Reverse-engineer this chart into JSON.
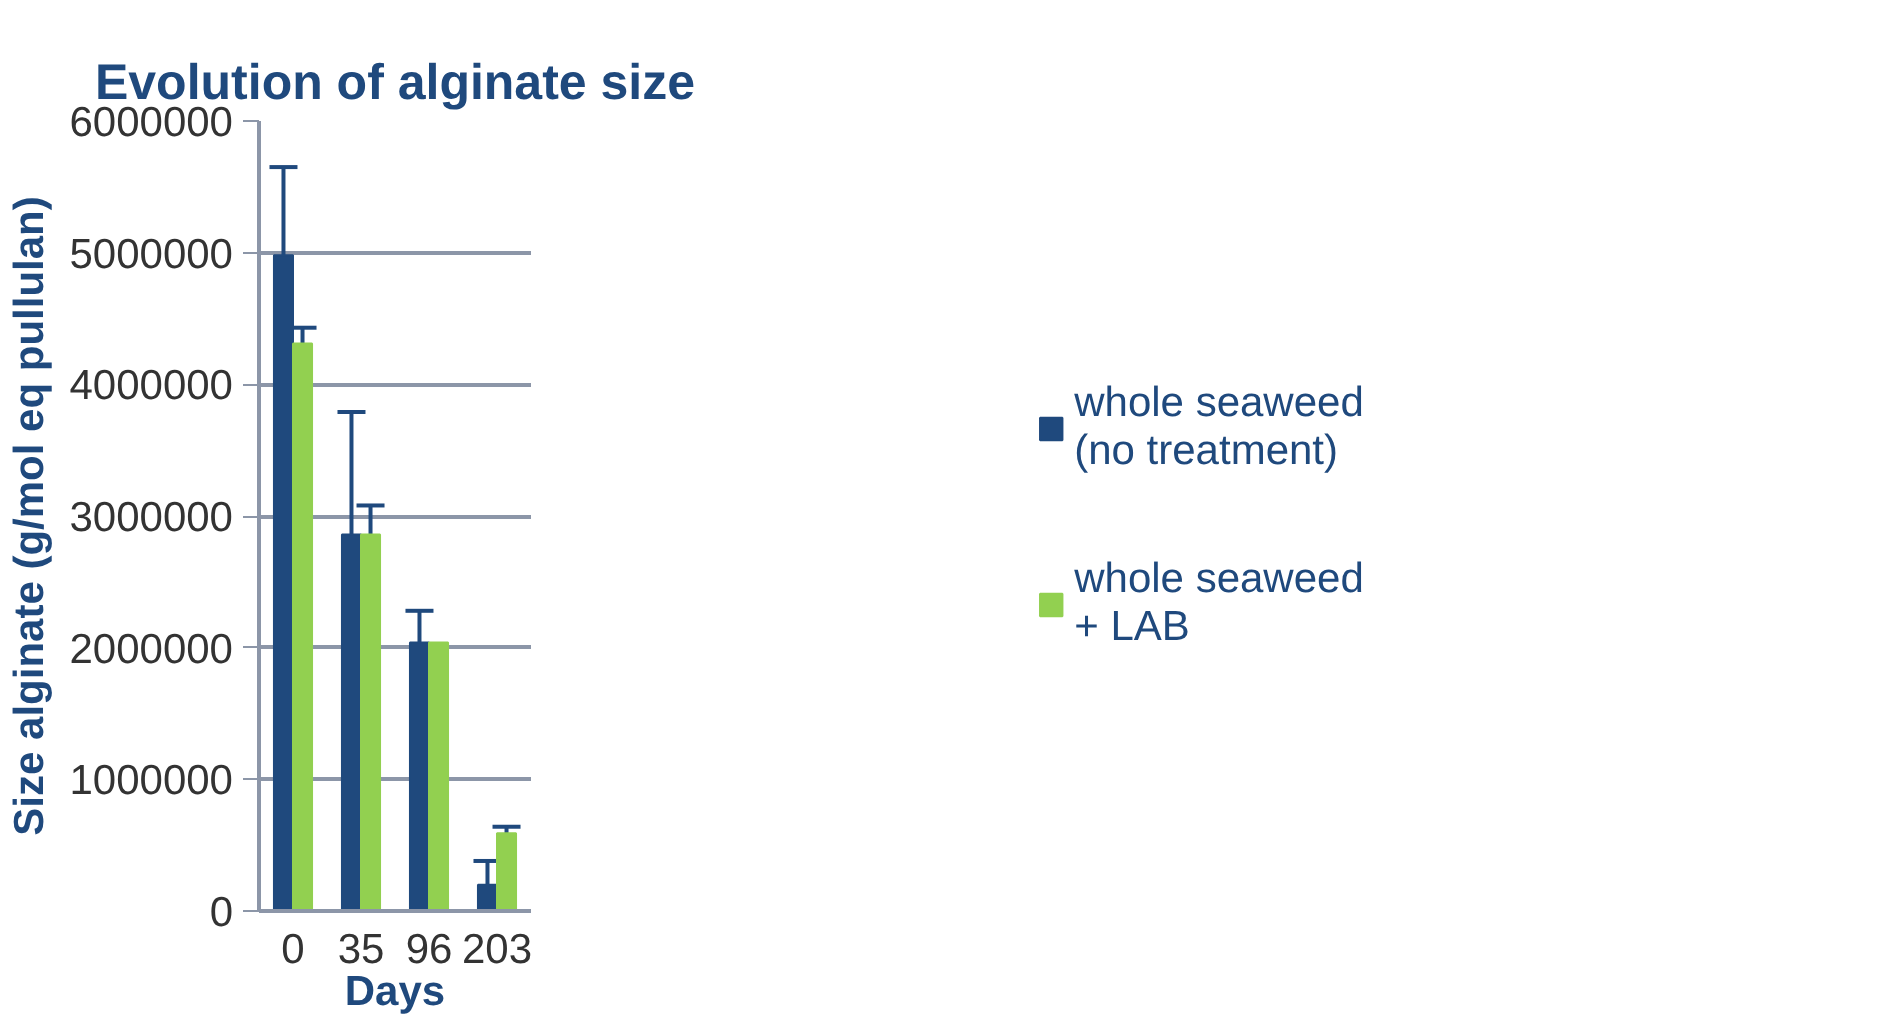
{
  "chart_data": {
    "type": "bar",
    "title": "Evolution of alginate size",
    "xlabel": "Days",
    "ylabel": "Size alginate (g/mol eq pullulan)",
    "categories": [
      "0",
      "35",
      "96",
      "203"
    ],
    "series": [
      {
        "name": "whole seaweed\n(no treatment)",
        "color": "#1f497d",
        "values": [
          4980000,
          2860000,
          2040000,
          200000
        ],
        "errors": [
          [
            4980000,
            5650000
          ],
          [
            2860000,
            3790000
          ],
          [
            2040000,
            2280000
          ],
          [
            200000,
            380000
          ]
        ]
      },
      {
        "name": "whole seaweed\n+ LAB",
        "color": "#92d050",
        "values": [
          4310000,
          2860000,
          2040000,
          590000
        ],
        "errors": [
          [
            4310000,
            4430000
          ],
          [
            2860000,
            3080000
          ],
          null,
          [
            590000,
            640000
          ]
        ]
      }
    ],
    "ylim": [
      0,
      6000000
    ],
    "yticks": [
      0,
      1000000,
      2000000,
      3000000,
      4000000,
      5000000,
      6000000
    ],
    "grid": "y",
    "legend": "right"
  }
}
